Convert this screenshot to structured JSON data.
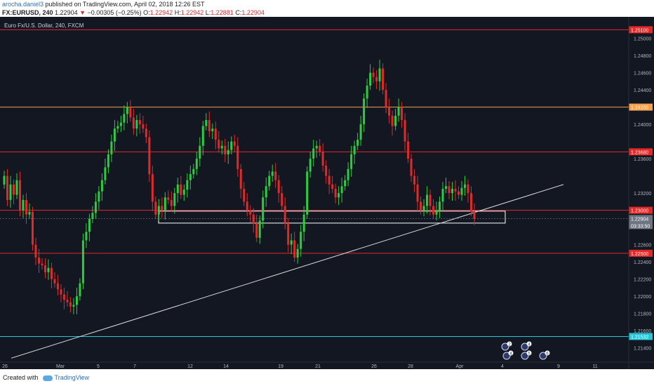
{
  "header": {
    "author": "arocha.daniel3",
    "published": " published on TradingView.com, April 02, 2018 12:26 EST",
    "symbol": "FX:EURUSD, 240",
    "last": "1.22904",
    "change": "−0.00305 (−0.25%)",
    "o_label": "O:",
    "o_value": "1.22942",
    "h_label": "H:",
    "h_value": "1.22942",
    "l_label": "L:",
    "l_value": "1.22881",
    "c_label": "C:",
    "c_value": "1.22904"
  },
  "chart_label": "Euro Fx/U.S. Dollar, 240, FXCM",
  "footer": {
    "created": "Created with",
    "brand": "TradingView"
  },
  "colors": {
    "background": "#131722",
    "up": "#2ecc40",
    "down": "#e02a2a",
    "red_level": "#e02a2a",
    "orange_level": "#f5a04a",
    "cyan_level": "#26c6da",
    "white": "#ffffff",
    "trendline": "#d8d8d8"
  },
  "chart_data": {
    "type": "candlestick",
    "price_range": [
      1.2125,
      1.2525
    ],
    "y_ticks": [
      "1.25000",
      "1.24800",
      "1.24600",
      "1.24400",
      "1.24000",
      "1.23600",
      "1.23200",
      "1.22600",
      "1.22400",
      "1.22200",
      "1.22000",
      "1.21800",
      "1.21600",
      "1.21400"
    ],
    "x_ticks": [
      "26",
      "Mar",
      "5",
      "7",
      "12",
      "14",
      "19",
      "21",
      "26",
      "28",
      "Apr",
      "4",
      "9",
      "11"
    ],
    "levels": [
      {
        "price": 1.251,
        "label": "1.25100",
        "color": "#e02a2a"
      },
      {
        "price": 1.242,
        "label": "1.24200",
        "color": "#f5a04a"
      },
      {
        "price": 1.2368,
        "label": "1.23680",
        "color": "#e02a2a"
      },
      {
        "price": 1.23,
        "label": "1.23000",
        "color": "#e02a2a"
      },
      {
        "price": 1.225,
        "label": "1.22500",
        "color": "#e02a2a"
      },
      {
        "price": 1.21532,
        "label": "1.21532",
        "color": "#26c6da"
      }
    ],
    "current_price": {
      "price": 1.22904,
      "label": "1.22904",
      "countdown": "03:33:50"
    },
    "support_zone": {
      "top": 1.2299,
      "bottom": 1.229
    },
    "trendline": {
      "from": 1.2128,
      "to": 1.233
    },
    "events": [
      "2",
      "4",
      "4",
      "5",
      "6"
    ],
    "closes": [
      1.234,
      1.2312,
      1.233,
      1.2318,
      1.2335,
      1.23,
      1.2312,
      1.2295,
      1.2298,
      1.226,
      1.2245,
      1.2238,
      1.2236,
      1.2228,
      1.2233,
      1.222,
      1.2215,
      1.2208,
      1.2202,
      1.2196,
      1.2193,
      1.2188,
      1.219,
      1.22,
      1.2215,
      1.2265,
      1.2275,
      1.229,
      1.2297,
      1.231,
      1.2322,
      1.2335,
      1.235,
      1.2365,
      1.238,
      1.2395,
      1.2398,
      1.2402,
      1.2412,
      1.242,
      1.2408,
      1.2395,
      1.2405,
      1.24,
      1.2395,
      1.2385,
      1.2342,
      1.231,
      1.2295,
      1.2305,
      1.23,
      1.2315,
      1.2312,
      1.2305,
      1.232,
      1.233,
      1.2318,
      1.2324,
      1.2335,
      1.2342,
      1.2348,
      1.236,
      1.2375,
      1.2398,
      1.2405,
      1.2392,
      1.2395,
      1.2382,
      1.2372,
      1.2375,
      1.2365,
      1.237,
      1.238,
      1.2375,
      1.2348,
      1.2325,
      1.231,
      1.23,
      1.2295,
      1.2285,
      1.2268,
      1.2288,
      1.2315,
      1.2328,
      1.234,
      1.2345,
      1.2335,
      1.232,
      1.2305,
      1.2285,
      1.226,
      1.2265,
      1.2245,
      1.2255,
      1.2275,
      1.2295,
      1.2345,
      1.236,
      1.2372,
      1.2375,
      1.2368,
      1.2352,
      1.234,
      1.233,
      1.2325,
      1.2315,
      1.232,
      1.2328,
      1.2335,
      1.2348,
      1.2365,
      1.2375,
      1.2382,
      1.24,
      1.243,
      1.2445,
      1.246,
      1.2455,
      1.245,
      1.2465,
      1.244,
      1.242,
      1.241,
      1.2398,
      1.241,
      1.242,
      1.2405,
      1.238,
      1.236,
      1.234,
      1.233,
      1.231,
      1.23,
      1.2305,
      1.2318,
      1.2305,
      1.2295,
      1.23,
      1.231,
      1.2325,
      1.2328,
      1.232,
      1.2325,
      1.2322,
      1.2318,
      1.2326,
      1.233,
      1.232,
      1.2298,
      1.229
    ]
  }
}
